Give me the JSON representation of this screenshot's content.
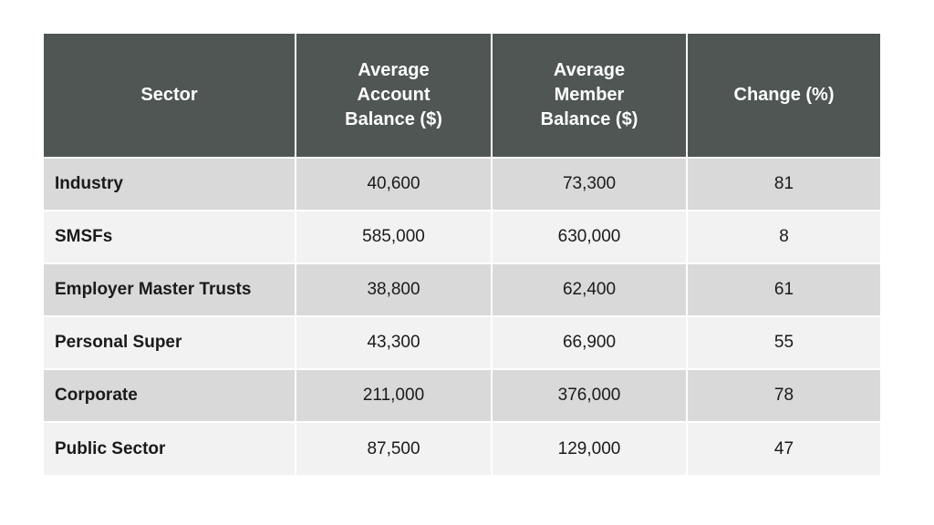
{
  "table": {
    "columns": [
      "Sector",
      "Average Account Balance ($)",
      "Average Member Balance ($)",
      "Change (%)"
    ],
    "rows": [
      {
        "sector": "Industry",
        "avg_account_balance": "40,600",
        "avg_member_balance": "73,300",
        "change_pct": "81"
      },
      {
        "sector": "SMSFs",
        "avg_account_balance": "585,000",
        "avg_member_balance": "630,000",
        "change_pct": "8"
      },
      {
        "sector": "Employer Master Trusts",
        "avg_account_balance": "38,800",
        "avg_member_balance": "62,400",
        "change_pct": "61"
      },
      {
        "sector": "Personal Super",
        "avg_account_balance": "43,300",
        "avg_member_balance": "66,900",
        "change_pct": "55"
      },
      {
        "sector": "Corporate",
        "avg_account_balance": "211,000",
        "avg_member_balance": "376,000",
        "change_pct": "78"
      },
      {
        "sector": "Public Sector",
        "avg_account_balance": "87,500",
        "avg_member_balance": "129,000",
        "change_pct": "47"
      }
    ],
    "colors": {
      "header_bg": "#4F5653",
      "header_text": "#FFFFFF",
      "row_odd_bg": "#D9D9D9",
      "row_even_bg": "#F2F2F2",
      "body_text": "#1A1A1A",
      "divider": "#FFFFFF"
    }
  }
}
